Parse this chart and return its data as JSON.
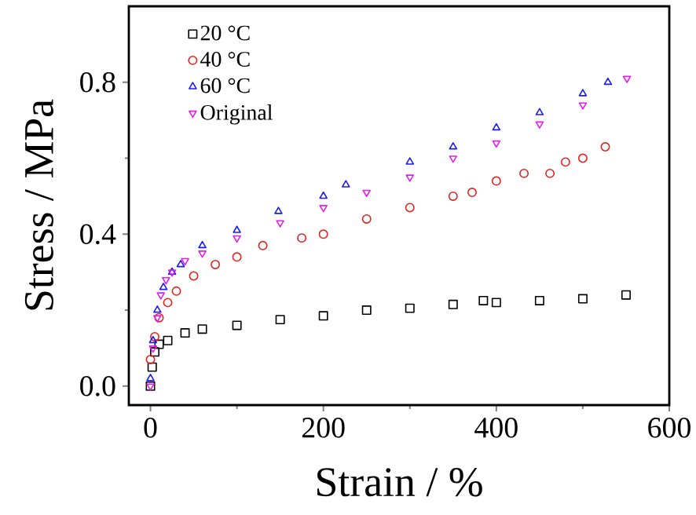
{
  "chart_data": {
    "type": "scatter",
    "xlabel": "Strain / %",
    "ylabel": "Stress / MPa",
    "xlim": [
      -25,
      600
    ],
    "ylim": [
      -0.05,
      1.0
    ],
    "xticks": [
      0,
      200,
      400,
      600
    ],
    "yticks": [
      {
        "value": 0,
        "label": "0.0"
      },
      0.4,
      0.8
    ],
    "grid": false,
    "legend": "top left",
    "series": [
      {
        "name": "20 °C",
        "color": "#000000",
        "marker": "square",
        "x": [
          0,
          2,
          5,
          10,
          20,
          40,
          60,
          100,
          150,
          200,
          250,
          300,
          350,
          385,
          400,
          450,
          500,
          550
        ],
        "values": [
          0.0,
          0.05,
          0.09,
          0.11,
          0.12,
          0.14,
          0.15,
          0.16,
          0.175,
          0.185,
          0.2,
          0.205,
          0.215,
          0.225,
          0.22,
          0.225,
          0.23,
          0.24
        ]
      },
      {
        "name": "40 °C",
        "color": "#e8201c",
        "marker": "circle",
        "x": [
          0,
          5,
          10,
          20,
          30,
          50,
          75,
          100,
          130,
          175,
          200,
          250,
          300,
          350,
          372,
          400,
          432,
          462,
          480,
          500,
          526
        ],
        "values": [
          0.07,
          0.13,
          0.18,
          0.22,
          0.25,
          0.29,
          0.32,
          0.34,
          0.37,
          0.39,
          0.4,
          0.44,
          0.47,
          0.5,
          0.51,
          0.54,
          0.56,
          0.56,
          0.59,
          0.6,
          0.63
        ]
      },
      {
        "name": "60 °C",
        "color": "#1c1cf0",
        "marker": "triangle",
        "x": [
          0,
          3,
          8,
          15,
          25,
          35,
          60,
          100,
          148,
          200,
          226,
          300,
          350,
          400,
          450,
          500,
          529
        ],
        "values": [
          0.02,
          0.12,
          0.2,
          0.26,
          0.3,
          0.32,
          0.37,
          0.41,
          0.46,
          0.5,
          0.53,
          0.59,
          0.63,
          0.68,
          0.72,
          0.77,
          0.8
        ]
      },
      {
        "name": "Original",
        "color": "#e020e8",
        "marker": "triangle-down",
        "x": [
          0,
          3,
          8,
          12,
          18,
          25,
          40,
          60,
          100,
          150,
          200,
          250,
          300,
          350,
          400,
          450,
          500,
          551
        ],
        "values": [
          0.0,
          0.1,
          0.18,
          0.24,
          0.28,
          0.3,
          0.33,
          0.35,
          0.39,
          0.43,
          0.47,
          0.51,
          0.55,
          0.6,
          0.64,
          0.69,
          0.74,
          0.81
        ]
      }
    ]
  }
}
